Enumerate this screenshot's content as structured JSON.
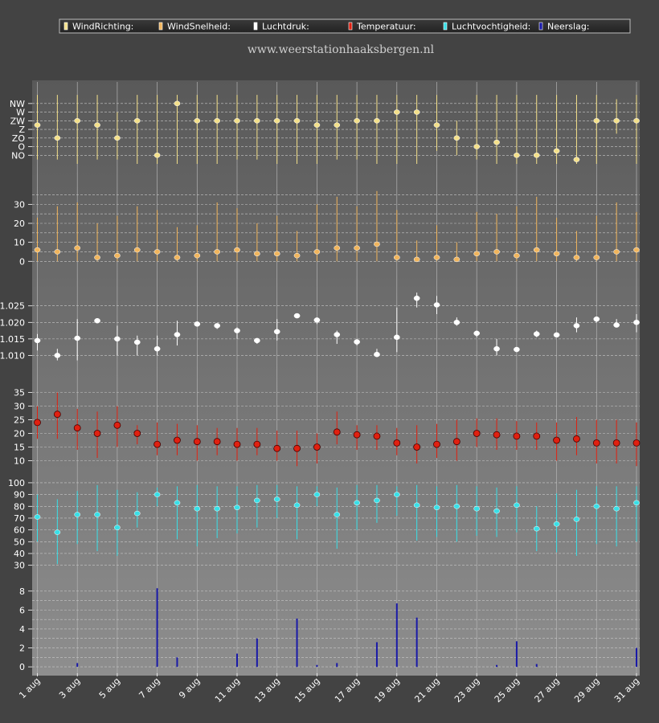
{
  "site_title": "www.weerstationhaaksbergen.nl",
  "colors": {
    "background": "#434343",
    "plot_bg_top": "#5a5a5a",
    "plot_bg_bottom": "#8a8a8a",
    "wind_direction": "#f4e08a",
    "wind_speed": "#f1b55c",
    "pressure": "#ffffff",
    "temperature": "#e02010",
    "humidity": "#38e0e8",
    "precipitation": "#1a1aa8"
  },
  "legend": [
    {
      "label": "WindRichting:",
      "color": "#f4e08a"
    },
    {
      "label": "WindSnelheid:",
      "color": "#f1b55c"
    },
    {
      "label": "Luchtdruk:",
      "color": "#ffffff"
    },
    {
      "label": "Temperatuur:",
      "color": "#e02010"
    },
    {
      "label": "Luchtvochtigheid:",
      "color": "#38e0e8"
    },
    {
      "label": "Neerslag:",
      "color": "#1a1aa8"
    }
  ],
  "chart_data": {
    "type": "combined",
    "days": 31,
    "x_tick_labels": [
      "1 aug",
      "3 aug",
      "5 aug",
      "7 aug",
      "9 aug",
      "11 aug",
      "13 aug",
      "15 aug",
      "17 aug",
      "19 aug",
      "21 aug",
      "23 aug",
      "25 aug",
      "27 aug",
      "29 aug",
      "31 aug"
    ],
    "panels": [
      {
        "key": "wind_direction",
        "type": "range-dot",
        "ylim": [
          0,
          9.5
        ],
        "ytick_labels": [
          {
            "v": 1,
            "t": "NO"
          },
          {
            "v": 2,
            "t": "O"
          },
          {
            "v": 3,
            "t": "ZO"
          },
          {
            "v": 4,
            "t": "Z"
          },
          {
            "v": 5,
            "t": "ZW"
          },
          {
            "v": 6,
            "t": "W"
          },
          {
            "v": 7,
            "t": "NW"
          }
        ],
        "grid": [
          1,
          2,
          3,
          4,
          5,
          6,
          7
        ],
        "value": [
          4.5,
          3,
          5,
          4.5,
          3,
          5,
          1,
          7,
          5,
          5,
          5,
          5,
          5,
          5,
          4.5,
          4.5,
          5,
          5,
          6,
          6,
          4.5,
          3,
          2,
          2.5,
          1,
          1,
          1.5,
          0.5,
          5,
          5,
          5
        ],
        "low": [
          0.5,
          0.5,
          0,
          0.5,
          0.5,
          0,
          0,
          0,
          0,
          0,
          0.5,
          0.5,
          0,
          0,
          0,
          0.5,
          0.5,
          0,
          0,
          0,
          1.5,
          1,
          0.5,
          0,
          0,
          0,
          0,
          0,
          0,
          3.5,
          0
        ],
        "high": [
          8,
          8,
          8,
          8,
          6,
          8,
          8,
          8,
          8,
          8,
          8,
          8,
          8,
          8,
          8,
          8,
          8,
          8,
          8,
          8,
          8,
          5,
          8,
          8,
          8,
          8,
          8,
          8,
          8,
          7.5,
          8
        ]
      },
      {
        "key": "wind_speed",
        "type": "range-dot",
        "ylim": [
          -2,
          42
        ],
        "ytick_labels": [
          {
            "v": 0,
            "t": "0"
          },
          {
            "v": 10,
            "t": "10"
          },
          {
            "v": 20,
            "t": "20"
          },
          {
            "v": 30,
            "t": "30"
          }
        ],
        "grid": [
          0,
          5,
          10,
          15,
          20,
          25,
          30,
          35
        ],
        "value": [
          6,
          5,
          7,
          2,
          3,
          6,
          5,
          2,
          3,
          5,
          6,
          4,
          4,
          3,
          5,
          7,
          7,
          9,
          2,
          1,
          2,
          1,
          4,
          5,
          3,
          6,
          4,
          2,
          2,
          5,
          6
        ],
        "low": [
          0,
          0,
          0,
          0,
          0,
          0,
          0,
          0,
          0,
          0,
          0,
          0,
          0,
          0,
          0,
          0,
          0,
          0,
          0,
          0,
          0,
          0,
          0,
          0,
          0,
          0,
          0,
          0,
          0,
          0,
          0
        ],
        "high": [
          23,
          29,
          31,
          20,
          24,
          29,
          27,
          18,
          19,
          31,
          28,
          20,
          24,
          16,
          30,
          34,
          29,
          37,
          27,
          11,
          19,
          10,
          26,
          25,
          29,
          34,
          23,
          16,
          24,
          31,
          26
        ]
      },
      {
        "key": "pressure",
        "type": "range-dot",
        "ylim": [
          1.005,
          1.0315
        ],
        "ytick_labels": [
          {
            "v": 1.01,
            "t": "1.010"
          },
          {
            "v": 1.015,
            "t": "1.015"
          },
          {
            "v": 1.02,
            "t": "1.020"
          },
          {
            "v": 1.025,
            "t": "1.025"
          }
        ],
        "grid": [
          1.01,
          1.015,
          1.02,
          1.025
        ],
        "value": [
          1.0145,
          1.01,
          1.0152,
          1.0205,
          1.015,
          1.014,
          1.012,
          1.0163,
          1.0195,
          1.019,
          1.0175,
          1.0145,
          1.0172,
          1.022,
          1.0207,
          1.0163,
          1.0141,
          1.0103,
          1.0155,
          1.0273,
          1.0253,
          1.02,
          1.0167,
          1.012,
          1.0118,
          1.0165,
          1.0162,
          1.019,
          1.021,
          1.0192,
          1.02
        ],
        "low": [
          1.0115,
          1.0085,
          1.0085,
          1.02,
          1.01,
          1.01,
          1.01,
          1.013,
          1.019,
          1.018,
          1.015,
          1.0135,
          1.0145,
          1.0215,
          1.0195,
          1.0135,
          1.013,
          1.0095,
          1.011,
          1.0245,
          1.0225,
          1.019,
          1.0155,
          1.01,
          1.011,
          1.0155,
          1.0155,
          1.017,
          1.02,
          1.0185,
          1.017
        ],
        "high": [
          1.0165,
          1.012,
          1.021,
          1.021,
          1.019,
          1.016,
          1.016,
          1.0205,
          1.02,
          1.0195,
          1.0185,
          1.015,
          1.021,
          1.0225,
          1.0215,
          1.0175,
          1.015,
          1.012,
          1.0245,
          1.029,
          1.028,
          1.0215,
          1.0175,
          1.015,
          1.0125,
          1.0175,
          1.0165,
          1.0215,
          1.0215,
          1.021,
          1.0225
        ]
      },
      {
        "key": "temperature",
        "type": "range-dot",
        "ylim": [
          7.5,
          37.5
        ],
        "ytick_labels": [
          {
            "v": 10,
            "t": "10"
          },
          {
            "v": 15,
            "t": "15"
          },
          {
            "v": 20,
            "t": "20"
          },
          {
            "v": 25,
            "t": "25"
          },
          {
            "v": 30,
            "t": "30"
          },
          {
            "v": 35,
            "t": "35"
          }
        ],
        "grid": [
          10,
          15,
          20,
          25,
          30,
          35
        ],
        "value": [
          24,
          27,
          22,
          20,
          23,
          20,
          16,
          17.5,
          17,
          17,
          16,
          16,
          14.5,
          14.5,
          15,
          20.5,
          19.5,
          19,
          16.5,
          15,
          16,
          17,
          20,
          19.5,
          19,
          19,
          17.5,
          18,
          16.5,
          16.5,
          16.5
        ],
        "low": [
          18,
          18,
          14,
          11,
          15,
          16,
          12,
          12,
          10,
          12,
          10,
          12,
          10,
          8,
          9,
          16,
          14,
          14,
          12,
          9,
          11,
          10,
          15,
          14,
          14,
          14,
          10,
          12,
          9,
          9,
          8
        ],
        "high": [
          30,
          35,
          29,
          28,
          30,
          23,
          24,
          23.5,
          23,
          22,
          22,
          22,
          21,
          21,
          20,
          28,
          23,
          23,
          22,
          23,
          23.5,
          25,
          25.5,
          25.5,
          24.5,
          24,
          24,
          26,
          25,
          25,
          24
        ]
      },
      {
        "key": "humidity",
        "type": "range-dot",
        "ylim": [
          25,
          102
        ],
        "ytick_labels": [
          {
            "v": 30,
            "t": "30"
          },
          {
            "v": 40,
            "t": "40"
          },
          {
            "v": 50,
            "t": "50"
          },
          {
            "v": 60,
            "t": "60"
          },
          {
            "v": 70,
            "t": "70"
          },
          {
            "v": 80,
            "t": "80"
          },
          {
            "v": 90,
            "t": "90"
          },
          {
            "v": 100,
            "t": "100"
          }
        ],
        "grid": [
          30,
          40,
          50,
          60,
          70,
          80,
          90,
          100
        ],
        "value": [
          71,
          58,
          73,
          73,
          62,
          74,
          90,
          83,
          78,
          78,
          79,
          85,
          86,
          81,
          90,
          73,
          83,
          85,
          90,
          81,
          79,
          80,
          78,
          76,
          81,
          61,
          65,
          69,
          80,
          78,
          83
        ],
        "low": [
          50,
          31,
          48,
          42,
          38,
          62,
          80,
          52,
          46,
          53,
          57,
          62,
          70,
          52,
          80,
          44,
          60,
          66,
          72,
          51,
          54,
          50,
          55,
          54,
          58,
          42,
          41,
          38,
          48,
          46,
          50
        ],
        "high": [
          90,
          86,
          93,
          98,
          94,
          92,
          96,
          97,
          98,
          97,
          97,
          98,
          98,
          97,
          97,
          96,
          98,
          98,
          97,
          98,
          97,
          98,
          97,
          96,
          97,
          80,
          91,
          94,
          97,
          97,
          97
        ]
      },
      {
        "key": "precipitation",
        "type": "bar",
        "ylim": [
          -0.5,
          9
        ],
        "ytick_labels": [
          {
            "v": 0,
            "t": "0"
          },
          {
            "v": 2,
            "t": "2"
          },
          {
            "v": 4,
            "t": "4"
          },
          {
            "v": 6,
            "t": "6"
          },
          {
            "v": 8,
            "t": "8"
          }
        ],
        "grid": [
          0,
          1,
          2,
          3,
          4,
          5,
          6,
          7,
          8
        ],
        "value": [
          0,
          0,
          0.4,
          0,
          0,
          0,
          8.3,
          1,
          0,
          0,
          1.4,
          3,
          0,
          5.1,
          0.2,
          0.4,
          0,
          2.6,
          6.7,
          5.2,
          0,
          0,
          0,
          0.2,
          2.7,
          0.3,
          0,
          0,
          0,
          0,
          2
        ]
      }
    ]
  }
}
